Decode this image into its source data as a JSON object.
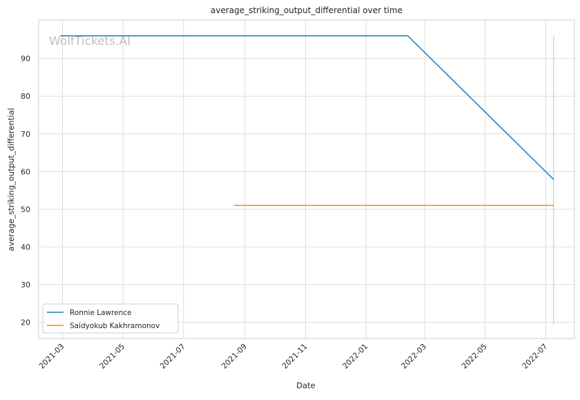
{
  "chart_data": {
    "type": "line",
    "title": "average_striking_output_differential over time",
    "xlabel": "Date",
    "ylabel": "average_striking_output_differential",
    "watermark": "WolfTickets.AI",
    "x_ticks": [
      "2021-03",
      "2021-05",
      "2021-07",
      "2021-09",
      "2021-11",
      "2022-01",
      "2022-03",
      "2022-05",
      "2022-07"
    ],
    "y_ticks": [
      20,
      30,
      40,
      50,
      60,
      70,
      80,
      90
    ],
    "xlim": [
      "2021-02-05",
      "2022-07-30"
    ],
    "ylim": [
      15.7,
      100.2
    ],
    "grid": true,
    "legend_position": "lower-left",
    "series": [
      {
        "name": "Ronnie Lawrence",
        "color": "#1f77b4",
        "points": [
          {
            "x": "2021-02-27",
            "y": 96
          },
          {
            "x": "2022-02-12",
            "y": 96
          },
          {
            "x": "2022-07-09",
            "y": 57.9
          }
        ]
      },
      {
        "name": "Saidyokub Kakhramonov",
        "color": "#ff7f0e",
        "points": [
          {
            "x": "2021-08-21",
            "y": 51
          },
          {
            "x": "2022-07-09",
            "y": 51
          }
        ]
      }
    ],
    "marker_line": {
      "x": "2022-07-09",
      "y_range": [
        19.5,
        96
      ],
      "color": "#b0c4d8"
    }
  }
}
